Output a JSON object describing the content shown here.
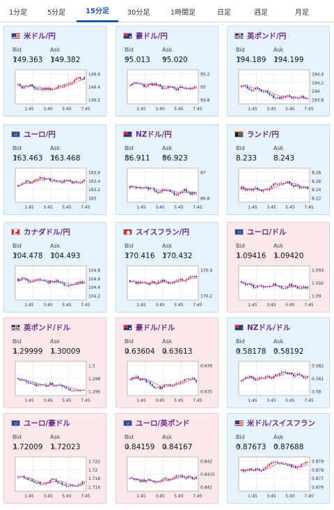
{
  "tabs": [
    {
      "label": "1分足",
      "active": false
    },
    {
      "label": "5分足",
      "active": false
    },
    {
      "label": "15分足",
      "active": true
    },
    {
      "label": "30分足",
      "active": false
    },
    {
      "label": "1時間足",
      "active": false
    },
    {
      "label": "日足",
      "active": false
    },
    {
      "label": "週足",
      "active": false
    },
    {
      "label": "月足",
      "active": false
    }
  ],
  "labels": {
    "bid": "Bid",
    "ask": "Ask"
  },
  "x_ticks": [
    "1:45",
    "3:45",
    "5:45",
    "7:45"
  ],
  "cards": [
    {
      "pair": "米ドル/円",
      "flag": "us",
      "dir": "up",
      "arrow": "↑",
      "bid": "149.363",
      "ask": "149.382",
      "ticks": [
        "149.6",
        "149.4",
        "149.2"
      ]
    },
    {
      "pair": "豪ドル/円",
      "flag": "au",
      "dir": "up",
      "arrow": "↑",
      "bid": "95.013",
      "ask": "95.020",
      "ticks": [
        "95.2",
        "95",
        "94.8"
      ]
    },
    {
      "pair": "英ポンド/円",
      "flag": "uk",
      "dir": "up",
      "arrow": "↑",
      "bid": "194.189",
      "ask": "194.199",
      "ticks": [
        "194.4",
        "194.2",
        "194",
        "193.8"
      ]
    },
    {
      "pair": "ユーロ/円",
      "flag": "eu",
      "dir": "up",
      "arrow": "↑",
      "bid": "163.463",
      "ask": "163.468",
      "ticks": [
        "163.6",
        "163.4",
        "163.2",
        "163"
      ]
    },
    {
      "pair": "NZドル/円",
      "flag": "nz",
      "dir": "up",
      "arrow": "↑",
      "bid": "86.911",
      "ask": "86.923",
      "ticks": [
        "87",
        "86.8"
      ]
    },
    {
      "pair": "ランド/円",
      "flag": "za",
      "dir": "none",
      "arrow": "",
      "bid": "8.233",
      "ask": "8.243",
      "ticks": [
        "8.28",
        "8.26",
        "8.24",
        "8.22"
      ]
    },
    {
      "pair": "カナダドル/円",
      "flag": "ca",
      "dir": "up",
      "arrow": "↑",
      "bid": "104.478",
      "ask": "104.493",
      "ticks": [
        "104.8",
        "104.6",
        "104.4",
        "104.2"
      ]
    },
    {
      "pair": "スイスフラン/円",
      "flag": "ch",
      "dir": "up",
      "arrow": "↑",
      "bid": "170.416",
      "ask": "170.432",
      "ticks": [
        "170.4",
        "170.2"
      ]
    },
    {
      "pair": "ユーロ/ドル",
      "flag": "eu",
      "dir": "down",
      "arrow": "↓",
      "bid": "1.09416",
      "ask": "1.09420",
      "ticks": [
        "1.094",
        "1.092",
        "1.09"
      ]
    },
    {
      "pair": "英ポンド/ドル",
      "flag": "uk",
      "dir": "down",
      "arrow": "↓",
      "bid": "1.29999",
      "ask": "1.30009",
      "ticks": [
        "1.3",
        "1.298",
        "1.296"
      ]
    },
    {
      "pair": "豪ドル/ドル",
      "flag": "au",
      "dir": "down",
      "arrow": "↓",
      "bid": "0.63604",
      "ask": "0.63613",
      "ticks": [
        "0.636",
        "0.635"
      ]
    },
    {
      "pair": "NZドル/ドル",
      "flag": "nz",
      "dir": "up",
      "arrow": "↑",
      "bid": "0.58178",
      "ask": "0.58192",
      "ticks": [
        "0.582",
        "0.581",
        "0.58"
      ]
    },
    {
      "pair": "ユーロ/豪ドル",
      "flag": "eu",
      "dir": "down",
      "arrow": "↓",
      "bid": "1.72009",
      "ask": "1.72023",
      "ticks": [
        "1.722",
        "1.72",
        "1.718",
        "1.716"
      ]
    },
    {
      "pair": "ユーロ/英ポンド",
      "flag": "eu",
      "dir": "down",
      "arrow": "↓",
      "bid": "0.84159",
      "ask": "0.84167",
      "ticks": [
        "0.842",
        "0.8415",
        "0.841"
      ]
    },
    {
      "pair": "米ドル/スイスフラン",
      "flag": "us",
      "dir": "up",
      "arrow": "↑",
      "bid": "0.87673",
      "ask": "0.87688",
      "ticks": [
        "0.879",
        "0.878",
        "0.877",
        "0.876"
      ]
    }
  ],
  "colors": {
    "up_candle": "#d0312d",
    "down_candle": "#1f3f9c",
    "ma_line": "#c94fcf",
    "arrow_up": "#2a7ab8",
    "arrow_down": "#d23a3a"
  }
}
